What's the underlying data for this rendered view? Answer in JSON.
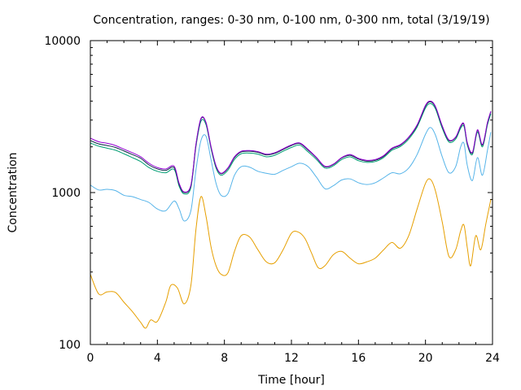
{
  "chart_data": {
    "type": "line",
    "title": "Concentration, ranges: 0-30 nm, 0-100 nm, 0-300 nm, total (3/19/19)",
    "xlabel": "Time [hour]",
    "ylabel": "Concentration",
    "xlim": [
      0,
      24
    ],
    "ylim": [
      100,
      10000
    ],
    "yscale": "log",
    "grid": false,
    "legend": "none",
    "x_ticks": [
      "0",
      "4",
      "8",
      "12",
      "16",
      "20",
      "24"
    ],
    "y_ticks": [
      "100",
      "1000",
      "10000"
    ],
    "series": [
      {
        "color": "#e69f00",
        "x": [
          0,
          0.5,
          1,
          1.5,
          2,
          2.5,
          3,
          3.3,
          3.6,
          4,
          4.5,
          4.8,
          5.2,
          5.6,
          6,
          6.3,
          6.6,
          6.9,
          7.2,
          7.5,
          7.8,
          8.2,
          8.6,
          9,
          9.5,
          10,
          10.5,
          11,
          11.5,
          12,
          12.4,
          12.8,
          13.2,
          13.6,
          14,
          14.5,
          15,
          15.5,
          16,
          16.5,
          17,
          17.5,
          18,
          18.5,
          19,
          19.5,
          20,
          20.3,
          20.6,
          21,
          21.4,
          21.8,
          22.1,
          22.3,
          22.5,
          22.7,
          23,
          23.3,
          23.6,
          23.9
        ],
        "values": [
          290,
          215,
          222,
          220,
          190,
          165,
          140,
          128,
          145,
          142,
          190,
          245,
          235,
          185,
          245,
          570,
          940,
          700,
          440,
          330,
          290,
          295,
          410,
          520,
          510,
          420,
          350,
          345,
          420,
          540,
          550,
          500,
          400,
          320,
          330,
          390,
          410,
          370,
          340,
          350,
          370,
          420,
          470,
          430,
          520,
          780,
          1150,
          1220,
          1020,
          640,
          380,
          420,
          560,
          610,
          430,
          330,
          520,
          420,
          620,
          900
        ]
      },
      {
        "color": "#56b4e9",
        "x": [
          0,
          0.5,
          1,
          1.5,
          2,
          2.5,
          3,
          3.5,
          4,
          4.5,
          5,
          5.3,
          5.6,
          6,
          6.3,
          6.6,
          6.9,
          7.2,
          7.5,
          7.8,
          8.2,
          8.6,
          9,
          9.5,
          10,
          10.5,
          11,
          11.5,
          12,
          12.5,
          13,
          13.5,
          14,
          14.5,
          15,
          15.5,
          16,
          16.5,
          17,
          17.5,
          18,
          18.5,
          19,
          19.5,
          20,
          20.3,
          20.6,
          21,
          21.4,
          21.8,
          22.1,
          22.3,
          22.5,
          22.8,
          23.1,
          23.4,
          23.7,
          23.9
        ],
        "values": [
          1120,
          1040,
          1050,
          1030,
          960,
          940,
          900,
          860,
          780,
          760,
          880,
          780,
          650,
          760,
          1400,
          2200,
          2350,
          1650,
          1150,
          960,
          980,
          1300,
          1480,
          1470,
          1380,
          1340,
          1320,
          1400,
          1480,
          1560,
          1480,
          1260,
          1060,
          1110,
          1210,
          1230,
          1160,
          1130,
          1160,
          1250,
          1350,
          1330,
          1450,
          1780,
          2420,
          2680,
          2380,
          1720,
          1350,
          1480,
          2000,
          2100,
          1500,
          1200,
          1700,
          1300,
          1900,
          2500
        ]
      },
      {
        "color": "#009e73",
        "x": [
          0,
          0.5,
          1,
          1.5,
          2,
          2.5,
          3,
          3.5,
          4,
          4.5,
          5,
          5.3,
          5.6,
          6,
          6.3,
          6.6,
          6.9,
          7.2,
          7.5,
          7.8,
          8.2,
          8.6,
          9,
          9.5,
          10,
          10.5,
          11,
          11.5,
          12,
          12.5,
          13,
          13.5,
          14,
          14.5,
          15,
          15.5,
          16,
          16.5,
          17,
          17.5,
          18,
          18.5,
          19,
          19.5,
          20,
          20.3,
          20.6,
          21,
          21.4,
          21.8,
          22.1,
          22.3,
          22.5,
          22.8,
          23.1,
          23.4,
          23.7,
          23.9
        ],
        "values": [
          2120,
          2020,
          1960,
          1900,
          1800,
          1700,
          1600,
          1460,
          1380,
          1350,
          1420,
          1100,
          980,
          1080,
          2000,
          2950,
          2800,
          1950,
          1450,
          1300,
          1400,
          1650,
          1800,
          1820,
          1790,
          1720,
          1760,
          1870,
          1980,
          2050,
          1850,
          1650,
          1450,
          1500,
          1650,
          1720,
          1620,
          1580,
          1600,
          1700,
          1900,
          2010,
          2250,
          2700,
          3600,
          3850,
          3550,
          2650,
          2150,
          2250,
          2650,
          2720,
          2050,
          1780,
          2500,
          2000,
          2800,
          3300
        ]
      },
      {
        "color": "#0b2a47",
        "x": [
          0,
          0.5,
          1,
          1.5,
          2,
          2.5,
          3,
          3.5,
          4,
          4.5,
          5,
          5.3,
          5.6,
          6,
          6.3,
          6.6,
          6.9,
          7.2,
          7.5,
          7.8,
          8.2,
          8.6,
          9,
          9.5,
          10,
          10.5,
          11,
          11.5,
          12,
          12.5,
          13,
          13.5,
          14,
          14.5,
          15,
          15.5,
          16,
          16.5,
          17,
          17.5,
          18,
          18.5,
          19,
          19.5,
          20,
          20.3,
          20.6,
          21,
          21.4,
          21.8,
          22.1,
          22.3,
          22.5,
          22.8,
          23.1,
          23.4,
          23.7,
          23.9
        ],
        "values": [
          2200,
          2090,
          2040,
          1980,
          1880,
          1780,
          1680,
          1520,
          1430,
          1400,
          1460,
          1130,
          1000,
          1110,
          2060,
          3050,
          2880,
          2000,
          1490,
          1330,
          1440,
          1700,
          1850,
          1870,
          1840,
          1770,
          1810,
          1920,
          2040,
          2100,
          1900,
          1690,
          1480,
          1530,
          1690,
          1760,
          1660,
          1610,
          1630,
          1730,
          1940,
          2050,
          2300,
          2760,
          3700,
          3950,
          3640,
          2720,
          2200,
          2300,
          2720,
          2790,
          2100,
          1820,
          2560,
          2050,
          2870,
          3400
        ]
      },
      {
        "color": "#9400d3",
        "x": [
          0,
          0.5,
          1,
          1.5,
          2,
          2.5,
          3,
          3.5,
          4,
          4.5,
          5,
          5.3,
          5.6,
          6,
          6.3,
          6.6,
          6.9,
          7.2,
          7.5,
          7.8,
          8.2,
          8.6,
          9,
          9.5,
          10,
          10.5,
          11,
          11.5,
          12,
          12.5,
          13,
          13.5,
          14,
          14.5,
          15,
          15.5,
          16,
          16.5,
          17,
          17.5,
          18,
          18.5,
          19,
          19.5,
          20,
          20.3,
          20.6,
          21,
          21.4,
          21.8,
          22.1,
          22.3,
          22.5,
          22.8,
          23.1,
          23.4,
          23.7,
          23.9
        ],
        "values": [
          2280,
          2160,
          2110,
          2040,
          1930,
          1830,
          1720,
          1560,
          1460,
          1430,
          1490,
          1150,
          1010,
          1120,
          2080,
          3080,
          2900,
          2010,
          1500,
          1340,
          1450,
          1720,
          1870,
          1890,
          1860,
          1790,
          1830,
          1940,
          2060,
          2120,
          1920,
          1700,
          1490,
          1540,
          1700,
          1780,
          1680,
          1630,
          1650,
          1750,
          1960,
          2070,
          2320,
          2790,
          3750,
          4000,
          3680,
          2750,
          2220,
          2320,
          2750,
          2820,
          2120,
          1840,
          2590,
          2070,
          2900,
          3430
        ]
      }
    ]
  }
}
